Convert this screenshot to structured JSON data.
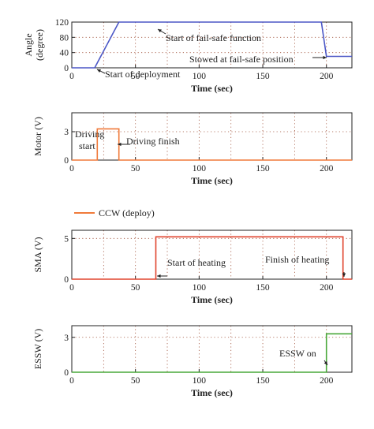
{
  "chart_data": [
    {
      "type": "line",
      "ylabel": "Angle\n(degree)",
      "xlabel": "Time (sec)",
      "xlim": [
        0,
        220
      ],
      "ylim": [
        0,
        120
      ],
      "xticks": [
        0,
        50,
        100,
        150,
        200
      ],
      "yticks": [
        0,
        40,
        80,
        120
      ],
      "xtick_labels": [
        "0",
        "50",
        "100",
        "150",
        "200"
      ],
      "ytick_labels": [
        "0",
        "40",
        "80",
        "120"
      ],
      "grid": true,
      "series": [
        {
          "color": "#4b57c6",
          "x": [
            0,
            18,
            37,
            196,
            200,
            220
          ],
          "y": [
            0,
            0,
            120,
            120,
            30,
            30
          ]
        }
      ],
      "annotations": [
        {
          "text": "Start of fail-safe function",
          "x": 65,
          "y": 112
        },
        {
          "text": "Start of deployment",
          "x": 30,
          "y": 20
        },
        {
          "text": "Stowed at fail-safe position",
          "x": 115,
          "y": 12
        }
      ]
    },
    {
      "type": "line",
      "ylabel": "Motor (V)",
      "xlabel": "Time (sec)",
      "xlim": [
        0,
        220
      ],
      "ylim": [
        0,
        5
      ],
      "xticks": [
        0,
        50,
        100,
        150,
        200
      ],
      "yticks": [
        0,
        3
      ],
      "xtick_labels": [
        "0",
        "50",
        "100",
        "150",
        "200"
      ],
      "ytick_labels": [
        "0",
        "3"
      ],
      "grid": true,
      "series": [
        {
          "name": "CCW (deploy)",
          "color": "#f07a3a",
          "x": [
            0,
            20,
            20,
            37,
            37,
            220
          ],
          "y": [
            0,
            0,
            3.3,
            3.3,
            0,
            0
          ]
        }
      ],
      "annotations": [
        {
          "text": "Driving",
          "x": 1,
          "y": 2.3
        },
        {
          "text": "start",
          "x": 6,
          "y": 1.2
        },
        {
          "text": "Driving finish",
          "x": 44,
          "y": 1.6
        }
      ]
    },
    {
      "type": "line",
      "ylabel": "SMA (V)",
      "xlabel": "Time (sec)",
      "xlim": [
        0,
        220
      ],
      "ylim": [
        0,
        6
      ],
      "xticks": [
        0,
        50,
        100,
        150,
        200
      ],
      "yticks": [
        0,
        5
      ],
      "xtick_labels": [
        "0",
        "50",
        "100",
        "150",
        "200"
      ],
      "ytick_labels": [
        "0",
        "5"
      ],
      "grid": true,
      "series": [
        {
          "color": "#e0452f",
          "x": [
            0,
            66,
            66,
            213,
            213,
            220
          ],
          "y": [
            0,
            0,
            5.2,
            5.2,
            0,
            0
          ]
        }
      ],
      "annotations": [
        {
          "text": "Start of heating",
          "x": 76,
          "y": 1.5
        },
        {
          "text": "Finish of heating",
          "x": 150,
          "y": 1.5
        }
      ]
    },
    {
      "type": "line",
      "ylabel": "ESSW (V)",
      "xlabel": "Time (sec)",
      "xlim": [
        0,
        220
      ],
      "ylim": [
        0,
        4
      ],
      "xticks": [
        0,
        50,
        100,
        150,
        200
      ],
      "yticks": [
        0,
        3
      ],
      "xtick_labels": [
        "0",
        "50",
        "100",
        "150",
        "200"
      ],
      "ytick_labels": [
        "0",
        "3"
      ],
      "grid": true,
      "series": [
        {
          "color": "#49a83a",
          "x": [
            0,
            200,
            200,
            220
          ],
          "y": [
            0,
            0,
            3.3,
            3.3
          ]
        }
      ],
      "annotations": [
        {
          "text": "ESSW on",
          "x": 162,
          "y": 1.2
        }
      ]
    }
  ],
  "legend": {
    "label": "CCW (deploy)",
    "color": "#f07a3a"
  }
}
